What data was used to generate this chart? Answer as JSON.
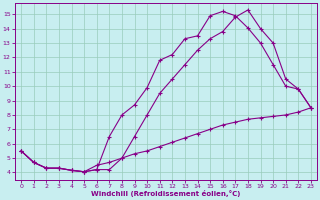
{
  "xlabel": "Windchill (Refroidissement éolien,°C)",
  "background_color": "#c8eef0",
  "grid_color": "#99ccbb",
  "line_color": "#880088",
  "xlim": [
    -0.5,
    23.5
  ],
  "ylim": [
    3.5,
    15.8
  ],
  "xticks": [
    0,
    1,
    2,
    3,
    4,
    5,
    6,
    7,
    8,
    9,
    10,
    11,
    12,
    13,
    14,
    15,
    16,
    17,
    18,
    19,
    20,
    21,
    22,
    23
  ],
  "yticks": [
    4,
    5,
    6,
    7,
    8,
    9,
    10,
    11,
    12,
    13,
    14,
    15
  ],
  "line1_x": [
    0,
    1,
    2,
    3,
    4,
    5,
    6,
    7,
    8,
    9,
    10,
    11,
    12,
    13,
    14,
    15,
    16,
    17,
    18,
    19,
    20,
    21,
    22,
    23
  ],
  "line1_y": [
    5.5,
    4.7,
    4.3,
    4.3,
    4.15,
    4.05,
    4.2,
    6.5,
    8.0,
    8.7,
    9.9,
    11.8,
    12.2,
    13.3,
    13.5,
    14.9,
    15.2,
    14.9,
    14.05,
    13.0,
    11.5,
    10.0,
    9.8,
    8.5
  ],
  "line2_x": [
    0,
    1,
    2,
    3,
    4,
    5,
    6,
    7,
    8,
    9,
    10,
    11,
    12,
    13,
    14,
    15,
    16,
    17,
    18,
    19,
    20,
    21,
    22,
    23
  ],
  "line2_y": [
    5.5,
    4.7,
    4.3,
    4.3,
    4.15,
    4.05,
    4.2,
    4.2,
    5.0,
    6.5,
    8.0,
    9.5,
    10.5,
    11.5,
    12.5,
    13.3,
    13.8,
    14.8,
    15.3,
    14.0,
    13.0,
    10.5,
    9.8,
    8.5
  ],
  "line3_x": [
    0,
    1,
    2,
    3,
    4,
    5,
    6,
    7,
    8,
    9,
    10,
    11,
    12,
    13,
    14,
    15,
    16,
    17,
    18,
    19,
    20,
    21,
    22,
    23
  ],
  "line3_y": [
    5.5,
    4.7,
    4.3,
    4.3,
    4.15,
    4.05,
    4.5,
    4.7,
    5.0,
    5.3,
    5.5,
    5.8,
    6.1,
    6.4,
    6.7,
    7.0,
    7.3,
    7.5,
    7.7,
    7.8,
    7.9,
    8.0,
    8.2,
    8.5
  ]
}
